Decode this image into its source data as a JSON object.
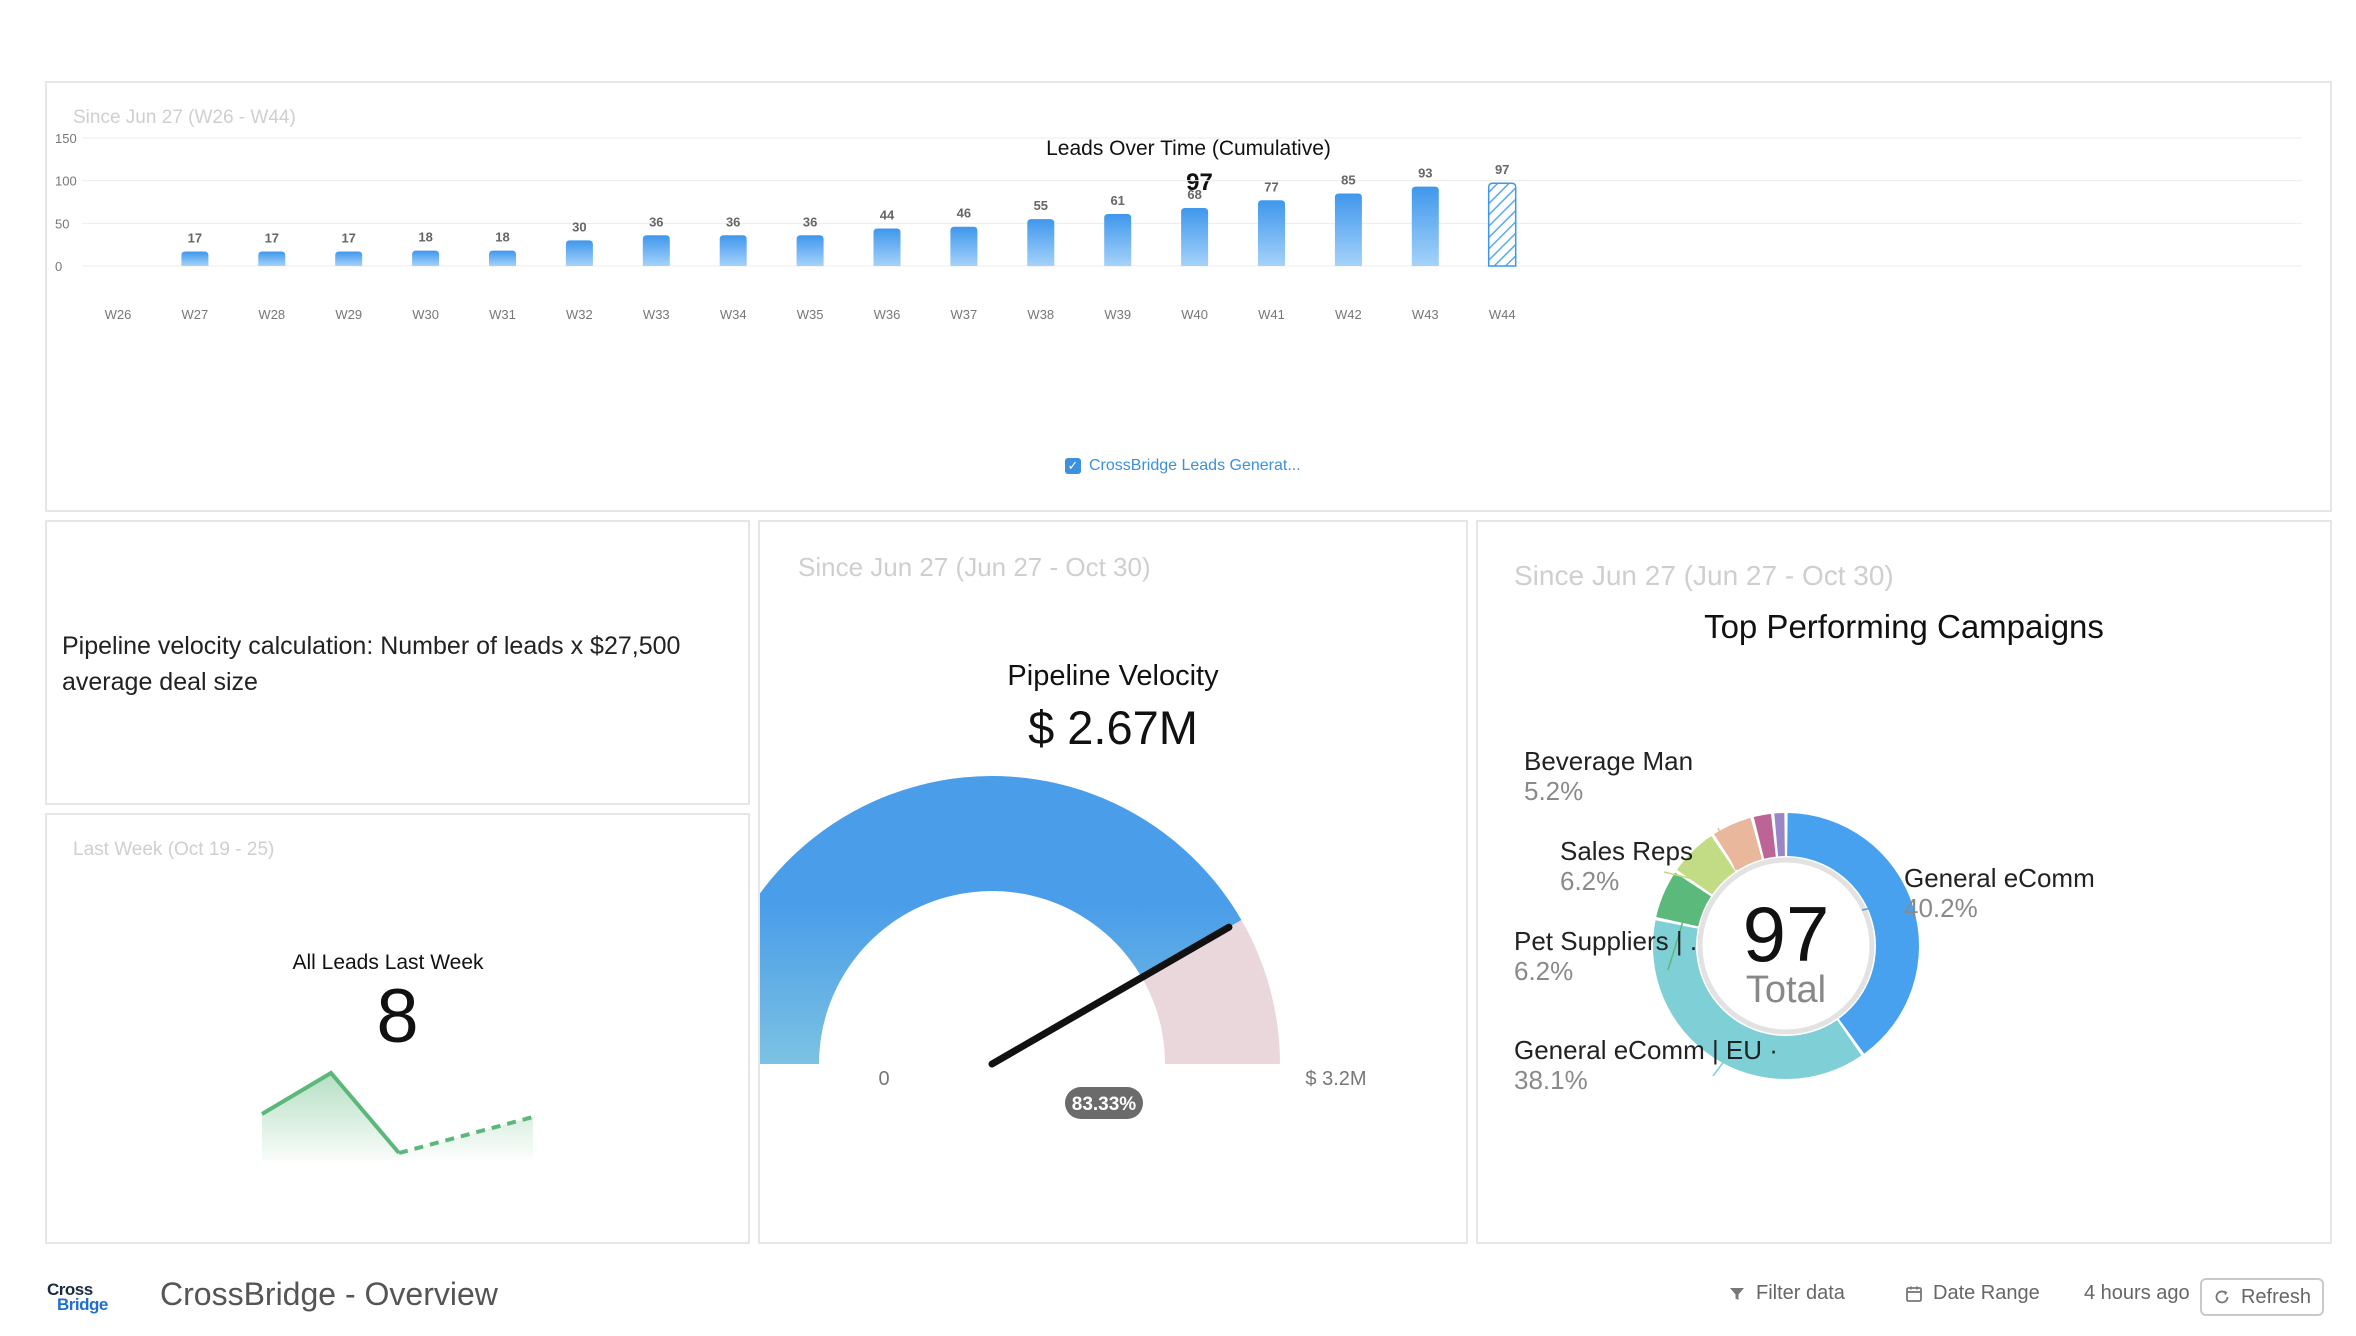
{
  "leads_panel": {
    "date_range": "Since Jun 27 (W26 - W44)",
    "title": "Leads Over Time (Cumulative)",
    "total": "97",
    "legend_label": "CrossBridge Leads Generat...",
    "chart_data": {
      "type": "bar",
      "title": "Leads Over Time (Cumulative)",
      "categories": [
        "W26",
        "W27",
        "W28",
        "W29",
        "W30",
        "W31",
        "W32",
        "W33",
        "W34",
        "W35",
        "W36",
        "W37",
        "W38",
        "W39",
        "W40",
        "W41",
        "W42",
        "W43",
        "W44"
      ],
      "series": [
        {
          "name": "CrossBridge Leads Generat...",
          "values": [
            0,
            17,
            17,
            17,
            18,
            18,
            30,
            36,
            36,
            36,
            44,
            46,
            55,
            61,
            68,
            77,
            85,
            93,
            97
          ]
        }
      ],
      "yticks": [
        0,
        50,
        100,
        150
      ],
      "ylim": [
        0,
        150
      ],
      "grid": true,
      "legend": "bottom-center",
      "last_bar_hatched": true
    }
  },
  "note_panel": {
    "text_line1": "Pipeline velocity calculation: Number of leads x $27,500",
    "text_line2": "average deal size"
  },
  "lastweek_panel": {
    "date_range": "Last Week (Oct 19 - 25)",
    "title": "All Leads Last Week",
    "value": "8",
    "sparkline_color": "#5cb87a"
  },
  "velocity_panel": {
    "date_range": "Since Jun 27 (Jun 27 - Oct 30)",
    "title": "Pipeline Velocity",
    "value": "$ 2.67M",
    "min_label": "0",
    "max_label": "$ 3.2M",
    "percent_label": "83.33%",
    "percent": 0.8333,
    "fill_color": "#4a9de8",
    "remainder_color": "#ead7dc"
  },
  "campaigns_panel": {
    "date_range": "Since Jun 27 (Jun 27 - Oct 30)",
    "title": "Top Performing Campaigns",
    "center_value": "97",
    "center_label": "Total",
    "chart_data": {
      "type": "pie",
      "title": "Top Performing Campaigns",
      "donut": true,
      "slices": [
        {
          "label": "General eComm",
          "pct_label": "40.2%",
          "value": 40.2,
          "color": "#47a1ee"
        },
        {
          "label": "General eComm | EU ·",
          "pct_label": "38.1%",
          "value": 38.1,
          "color": "#7fd0d6"
        },
        {
          "label": "Pet Suppliers | .",
          "pct_label": "6.2%",
          "value": 6.2,
          "color": "#5bb97c"
        },
        {
          "label": "Sales Reps",
          "pct_label": "6.2%",
          "value": 6.2,
          "color": "#c2dc85"
        },
        {
          "label": "Beverage Man",
          "pct_label": "5.2%",
          "value": 5.2,
          "color": "#e8b79c"
        },
        {
          "label": "",
          "pct_label": "",
          "value": 2.5,
          "color": "#bd6497"
        },
        {
          "label": "",
          "pct_label": "",
          "value": 1.6,
          "color": "#9a86c7"
        }
      ]
    }
  },
  "footer": {
    "logo_top": "Cross",
    "logo_bottom": "Bridge",
    "title": "CrossBridge - Overview",
    "filter_label": "Filter data",
    "date_range_label": "Date Range",
    "updated": "4 hours ago",
    "refresh_label": "Refresh"
  }
}
